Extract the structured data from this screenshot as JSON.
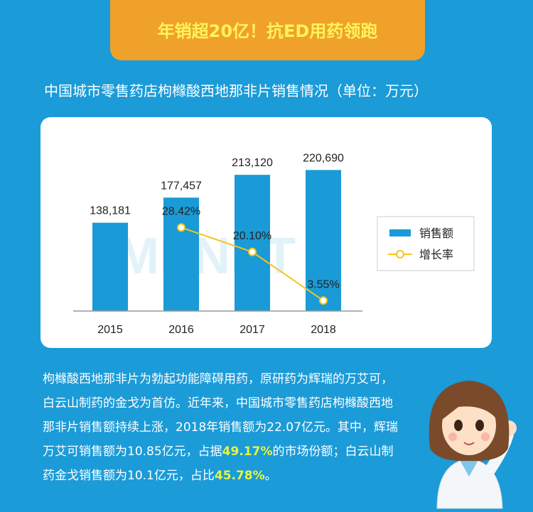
{
  "header": {
    "title": "年销超20亿！抗ED用药领跑"
  },
  "subtitle": "中国城市零售药店枸橼酸西地那非片销售情况（单位：万元）",
  "chart_data": {
    "type": "bar",
    "categories": [
      "2015",
      "2016",
      "2017",
      "2018"
    ],
    "series": [
      {
        "name": "销售额",
        "type": "bar",
        "color": "#1a9ad6",
        "values": [
          138181,
          177457,
          213120,
          220690
        ],
        "value_labels": [
          "138,181",
          "177,457",
          "213,120",
          "220,690"
        ]
      },
      {
        "name": "增长率",
        "type": "line",
        "axis": "y2",
        "color": "#f5c518",
        "values": [
          null,
          28.42,
          20.1,
          3.55
        ],
        "value_labels": [
          null,
          "28.42%",
          "20.10%",
          "3.55%"
        ]
      }
    ],
    "ylim": [
      0,
      230000
    ],
    "y2lim": [
      0,
      50
    ],
    "grid": false,
    "legend": "right",
    "watermark": "MENET"
  },
  "body": {
    "parts": [
      {
        "text": "枸橼酸西地那非片为勃起功能障碍用药，原研药为辉瑞的万艾可，白云山制药的金戈为首仿。近年来，中国城市零售药店枸橼酸西地那非片销售额持续上涨，2018年销售额为22.07亿元。其中，辉瑞万艾可销售额为10.85亿元，占据",
        "highlight": false
      },
      {
        "text": "49.17%",
        "highlight": true
      },
      {
        "text": "的市场份额；白云山制药金戈销售额为10.1亿元，占比",
        "highlight": false
      },
      {
        "text": "45.78%",
        "highlight": true
      },
      {
        "text": "。",
        "highlight": false
      }
    ]
  }
}
